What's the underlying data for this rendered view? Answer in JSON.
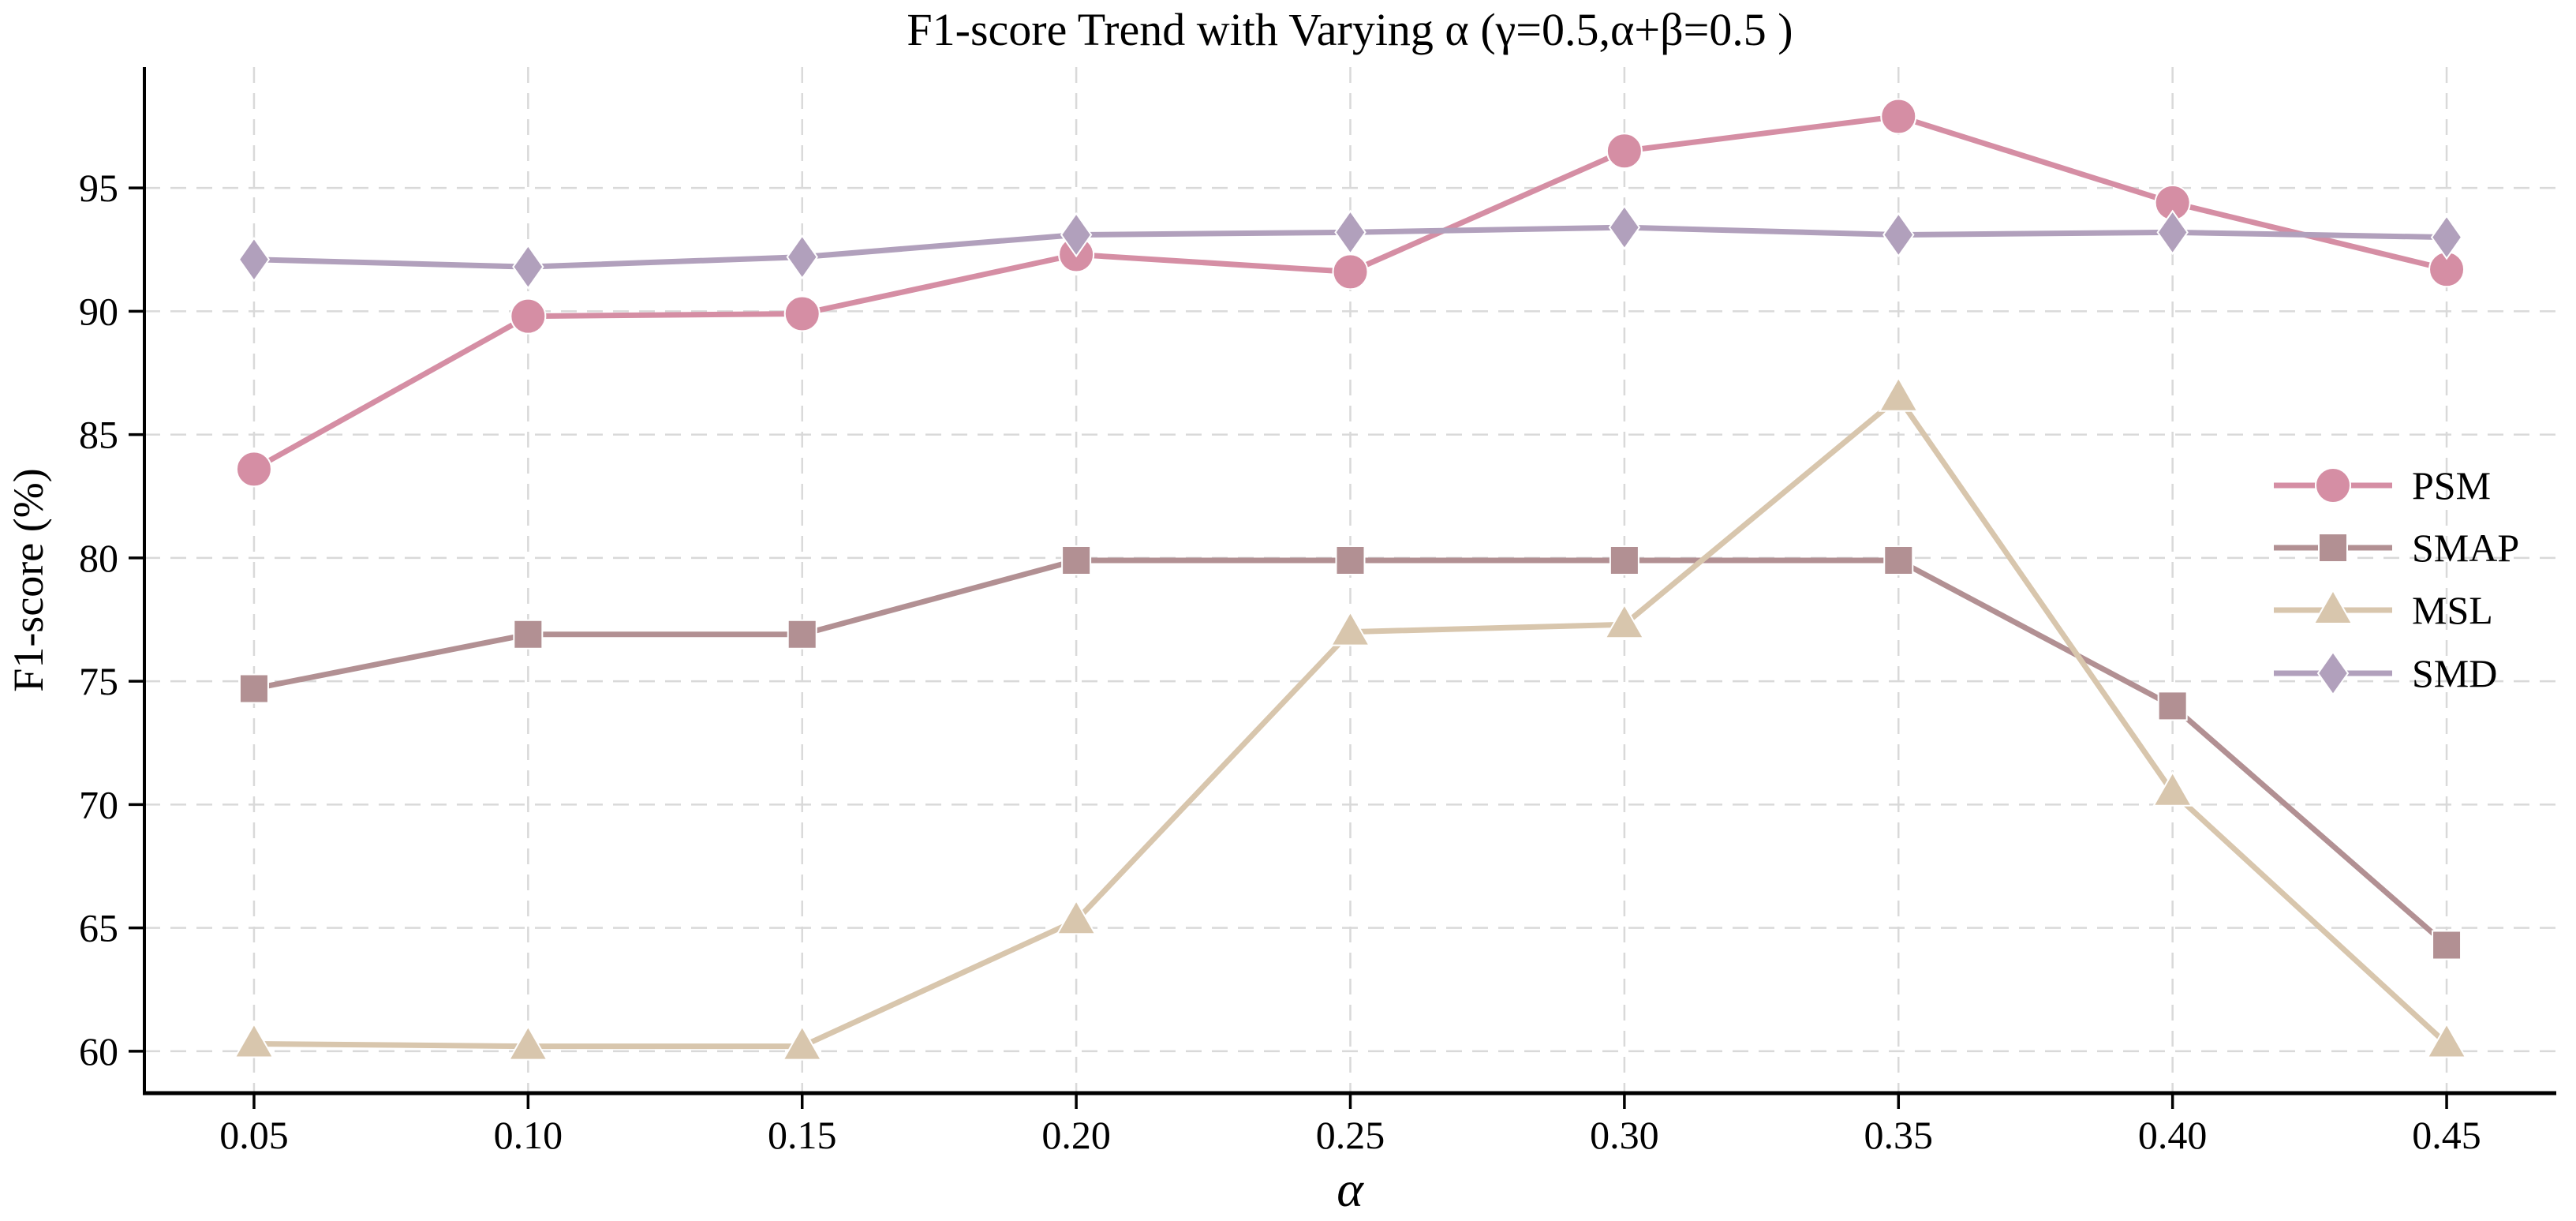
{
  "chart_data": {
    "type": "line",
    "title": "F1-score Trend with Varying α (γ=0.5,α+β=0.5 )",
    "xlabel": "α",
    "ylabel": "F1-score (%)",
    "x": [
      0.05,
      0.1,
      0.15,
      0.2,
      0.25,
      0.3,
      0.35,
      0.4,
      0.45
    ],
    "x_tick_labels": [
      "0.05",
      "0.10",
      "0.15",
      "0.20",
      "0.25",
      "0.30",
      "0.35",
      "0.40",
      "0.45"
    ],
    "y_ticks": [
      60,
      65,
      70,
      75,
      80,
      85,
      90,
      95
    ],
    "y_tick_labels": [
      "60",
      "65",
      "70",
      "75",
      "80",
      "85",
      "90",
      "95"
    ],
    "xlim": [
      0.03,
      0.47
    ],
    "ylim": [
      58.3,
      99.9
    ],
    "grid": true,
    "grid_style": "dashed",
    "grid_color": "#d9d9d9",
    "axis_color": "#000000",
    "background": "#ffffff",
    "legend_position": "center-right",
    "series": [
      {
        "name": "PSM",
        "marker": "circle",
        "color": "#d58ea4",
        "values": [
          83.6,
          89.8,
          89.9,
          92.3,
          91.6,
          96.5,
          97.9,
          94.4,
          91.7
        ]
      },
      {
        "name": "SMAP",
        "marker": "square",
        "color": "#b29093",
        "values": [
          74.7,
          76.9,
          76.9,
          79.9,
          79.9,
          79.9,
          79.9,
          74.0,
          64.3
        ]
      },
      {
        "name": "MSL",
        "marker": "triangle",
        "color": "#d8c6ad",
        "values": [
          60.3,
          60.2,
          60.2,
          65.3,
          77.0,
          77.3,
          86.5,
          70.5,
          60.3
        ]
      },
      {
        "name": "SMD",
        "marker": "diamond",
        "color": "#b1a0bc",
        "values": [
          92.1,
          91.8,
          92.2,
          93.1,
          93.2,
          93.4,
          93.1,
          93.2,
          93.0
        ]
      }
    ]
  }
}
